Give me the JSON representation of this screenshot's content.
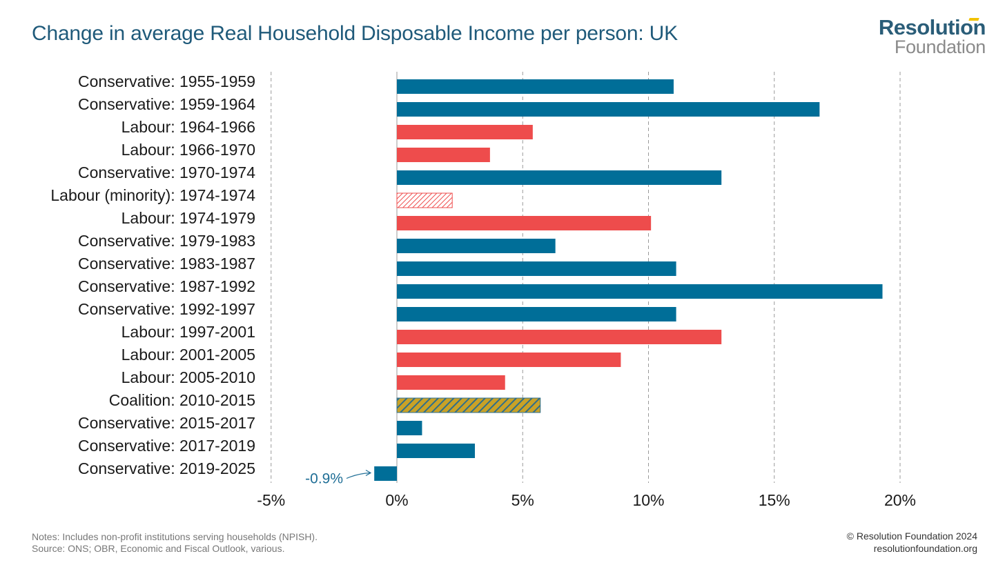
{
  "title": "Change in average Real Household Disposable Income per person: UK",
  "logo": {
    "line1": "Resolution",
    "line2": "Foundation"
  },
  "notes": {
    "line1": "Notes: Includes non-profit institutions serving households (NPISH).",
    "line2": "Source: ONS; OBR, Economic and Fiscal Outlook, various."
  },
  "credit": {
    "line1": "© Resolution Foundation 2024",
    "line2": "resolutionfoundation.org"
  },
  "colors": {
    "conservative": "#006e98",
    "labour": "#ee4c4c",
    "coalition_stripe1": "#2e6e8c",
    "coalition_stripe2": "#c9a227",
    "title": "#1f5a7a"
  },
  "chart_data": {
    "type": "bar",
    "orientation": "horizontal",
    "categories": [
      "Conservative: 1955-1959",
      "Conservative: 1959-1964",
      "Labour: 1964-1966",
      "Labour: 1966-1970",
      "Conservative: 1970-1974",
      "Labour (minority): 1974-1974",
      "Labour: 1974-1979",
      "Conservative: 1979-1983",
      "Conservative: 1983-1987",
      "Conservative: 1987-1992",
      "Conservative: 1992-1997",
      "Labour: 1997-2001",
      "Labour: 2001-2005",
      "Labour: 2005-2010",
      "Coalition: 2010-2015",
      "Conservative: 2015-2017",
      "Conservative: 2017-2019",
      "Conservative: 2019-2025"
    ],
    "values": [
      11.0,
      16.8,
      5.4,
      3.7,
      12.9,
      2.2,
      10.1,
      6.3,
      11.1,
      19.3,
      11.1,
      12.9,
      8.9,
      4.3,
      5.7,
      1.0,
      3.1,
      -0.9
    ],
    "party": [
      "conservative",
      "conservative",
      "labour",
      "labour",
      "conservative",
      "labour_minority",
      "labour",
      "conservative",
      "conservative",
      "conservative",
      "conservative",
      "labour",
      "labour",
      "labour",
      "coalition",
      "conservative",
      "conservative",
      "conservative"
    ],
    "xlim": [
      -5,
      20
    ],
    "xticks": [
      -5,
      0,
      5,
      10,
      15,
      20
    ],
    "xtick_labels": [
      "-5%",
      "0%",
      "5%",
      "10%",
      "15%",
      "20%"
    ],
    "grid": "vertical dashed",
    "annotation": {
      "text": "-0.9%",
      "category_index": 17
    }
  }
}
